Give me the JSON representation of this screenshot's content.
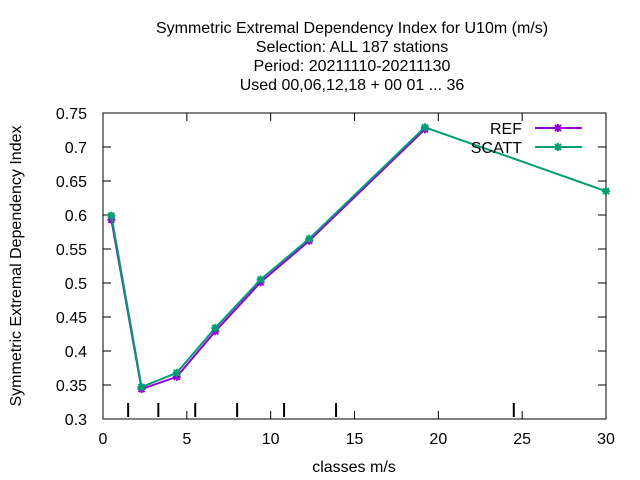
{
  "chart_data": {
    "type": "line",
    "title_lines": [
      "Symmetric Extremal Dependency Index  for U10m (m/s)",
      "Selection: ALL    187 stations",
      "Period: 20211110-20211130",
      "Used  00,06,12,18 + 00 01 ... 36"
    ],
    "xlabel": "classes m/s",
    "ylabel": "Symmetric Extremal Dependency Index",
    "xlim": [
      0,
      30
    ],
    "ylim": [
      0.3,
      0.75
    ],
    "x_ticks": [
      "0",
      "5",
      "10",
      "15",
      "20",
      "25",
      "30"
    ],
    "y_ticks": [
      "0.3",
      "0.35",
      "0.4",
      "0.45",
      "0.5",
      "0.55",
      "0.6",
      "0.65",
      "0.7",
      "0.75"
    ],
    "class_boundaries": [
      1.5,
      3.3,
      5.5,
      8,
      10.8,
      13.9,
      24.5
    ],
    "grid": false,
    "legend_position": "top-right",
    "series": [
      {
        "name": "REF",
        "color": "#9400d3",
        "x": [
          0.5,
          2.3,
          4.4,
          6.7,
          9.4,
          12.3,
          19.2
        ],
        "y": [
          0.593,
          0.344,
          0.362,
          0.429,
          0.501,
          0.562,
          0.726
        ]
      },
      {
        "name": "SCATT",
        "color": "#009e73",
        "x": [
          0.5,
          2.3,
          4.4,
          6.7,
          9.4,
          12.3,
          19.2,
          30
        ],
        "y": [
          0.599,
          0.347,
          0.368,
          0.434,
          0.505,
          0.565,
          0.729,
          0.635
        ]
      }
    ]
  }
}
